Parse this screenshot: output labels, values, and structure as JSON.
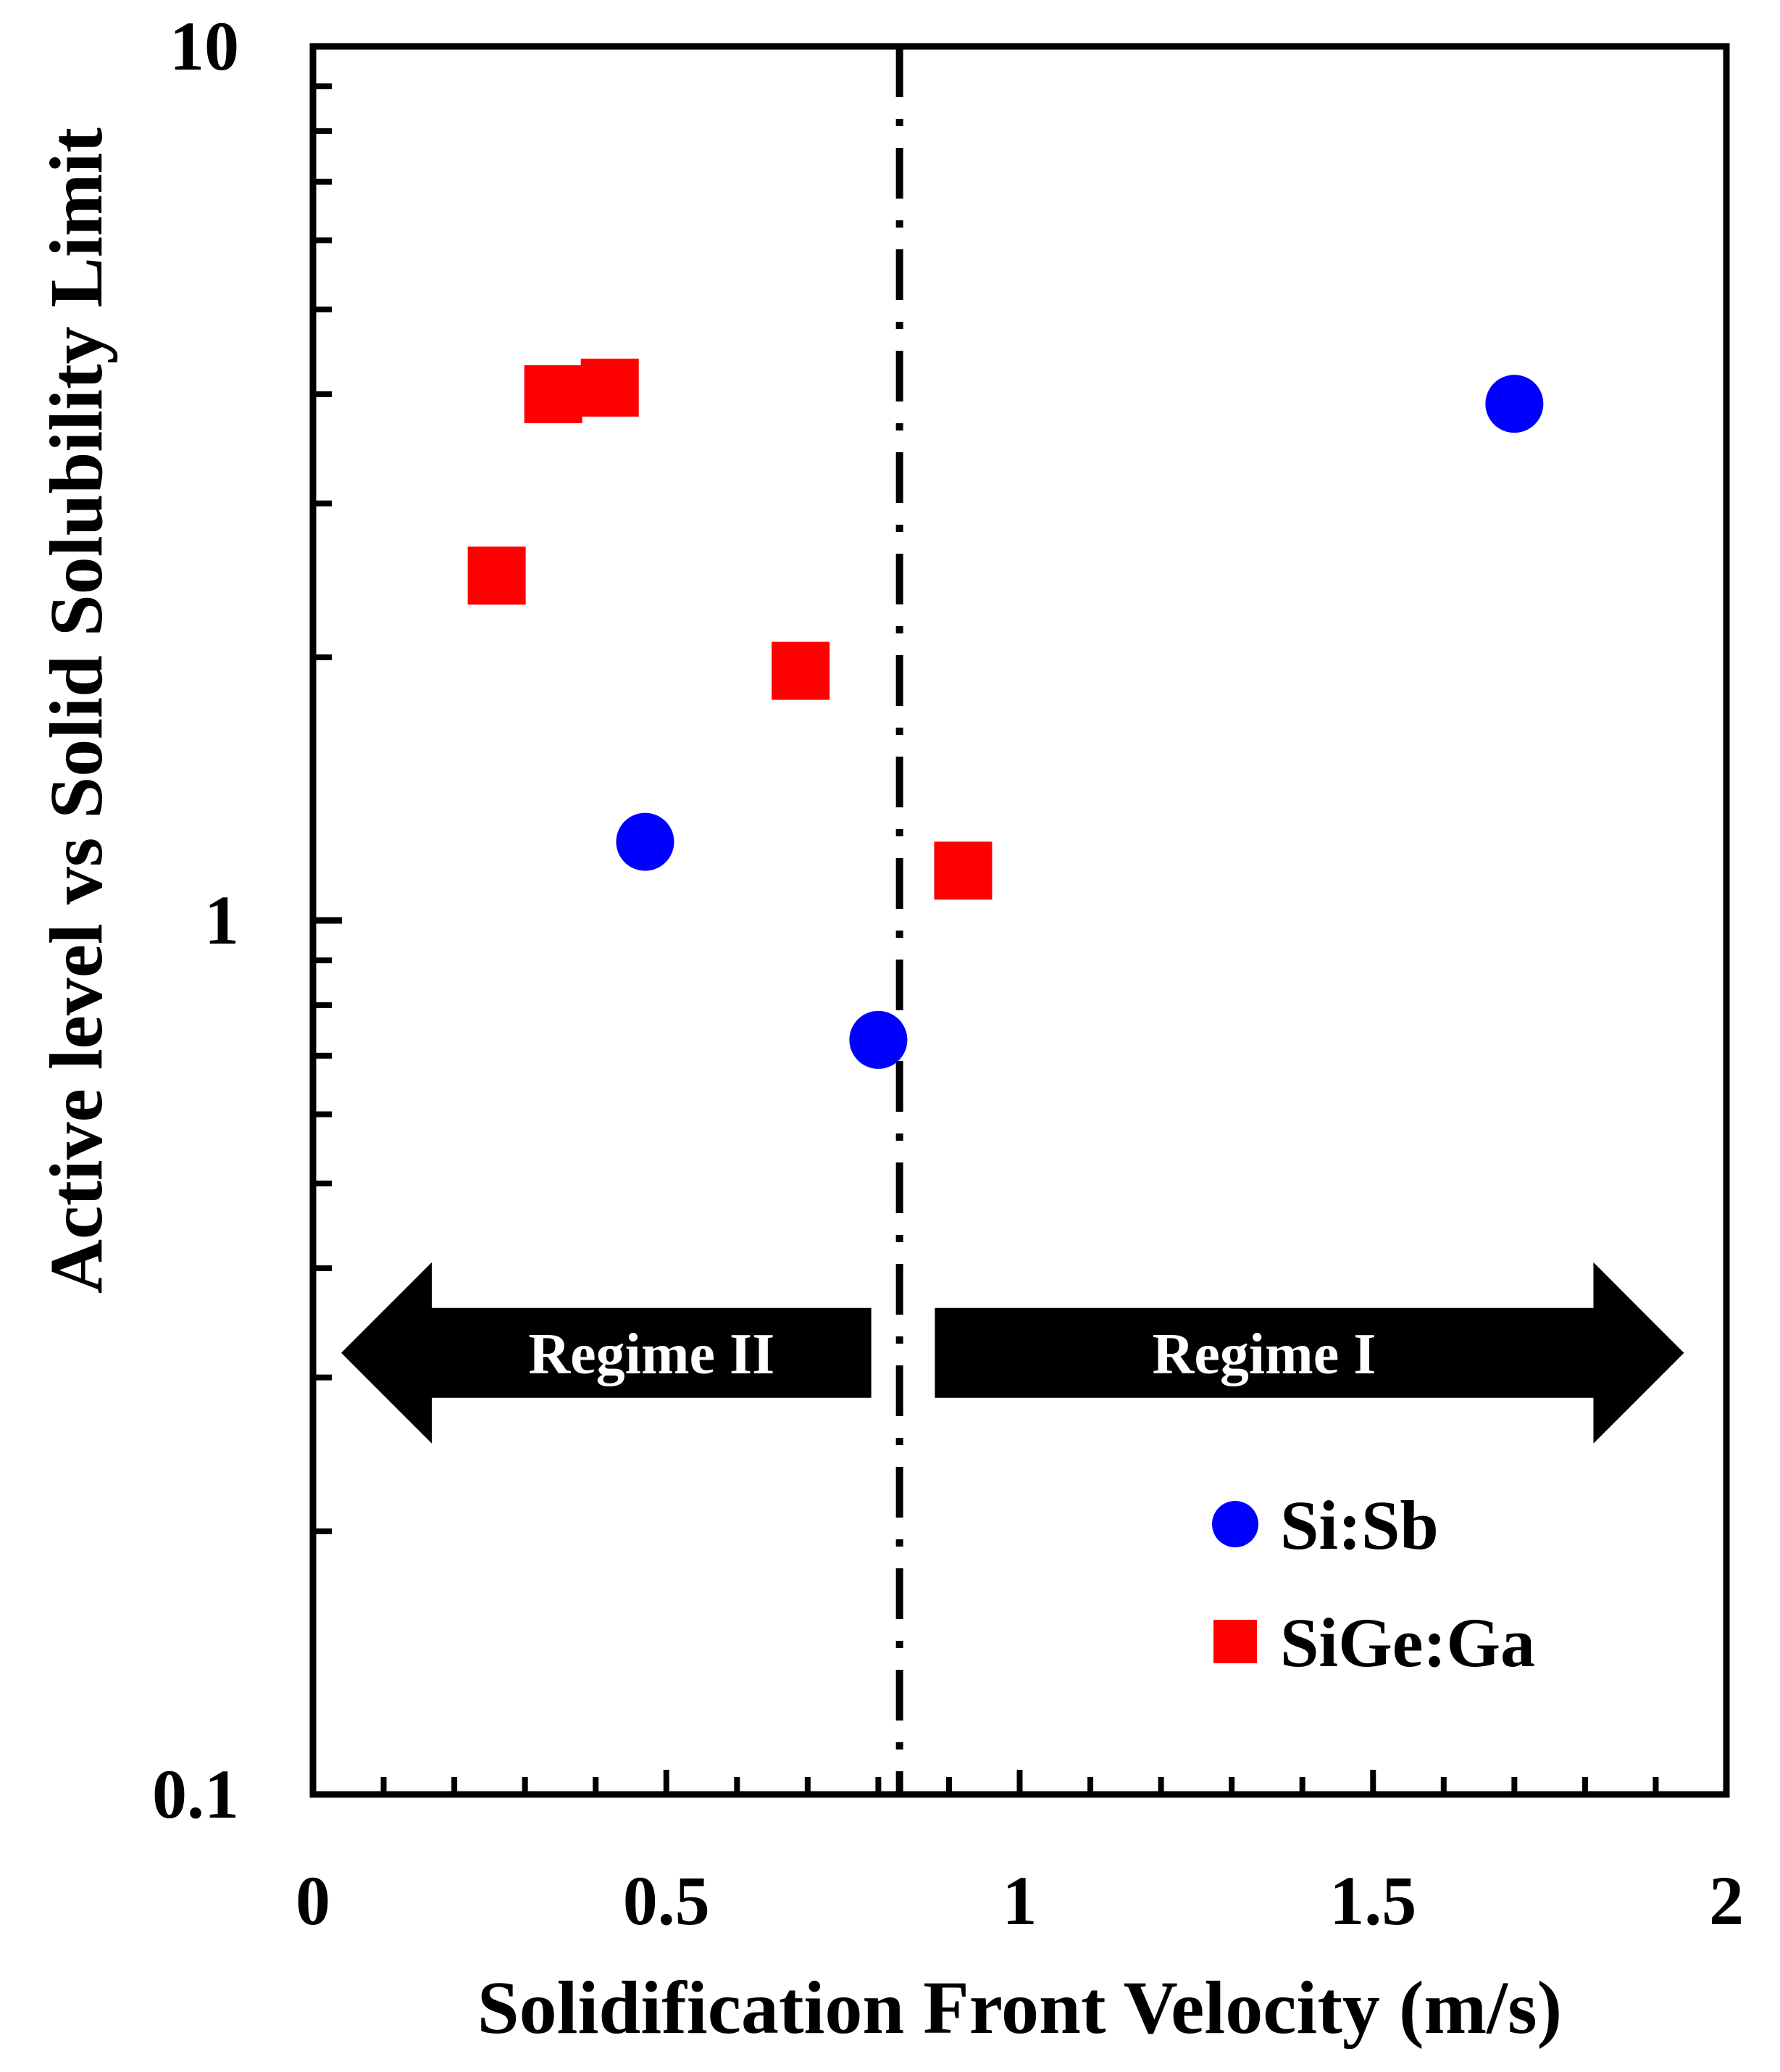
{
  "chart_data": {
    "type": "scatter",
    "title": "",
    "xlabel": "Solidification Front Velocity (m/s)",
    "ylabel": "Active level vs Solid Solubility Limit",
    "xlim": [
      0,
      2
    ],
    "ylim": [
      0.1,
      10
    ],
    "yscale": "log",
    "grid": false,
    "x_ticks": [
      {
        "value": 0,
        "label": "0"
      },
      {
        "value": 0.5,
        "label": "0.5"
      },
      {
        "value": 1,
        "label": "1"
      },
      {
        "value": 1.5,
        "label": "1.5"
      },
      {
        "value": 2,
        "label": "2"
      }
    ],
    "y_ticks": [
      {
        "value": 0.1,
        "label": "0.1"
      },
      {
        "value": 1,
        "label": "1"
      },
      {
        "value": 10,
        "label": "10"
      }
    ],
    "series": [
      {
        "name": "Si:Sb",
        "marker": "circle",
        "color": "#0000ff",
        "points": [
          {
            "x": 0.47,
            "y": 1.23
          },
          {
            "x": 0.8,
            "y": 0.73
          },
          {
            "x": 1.7,
            "y": 3.9
          }
        ]
      },
      {
        "name": "SiGe:Ga",
        "marker": "square",
        "color": "#ff0000",
        "points": [
          {
            "x": 0.26,
            "y": 2.48
          },
          {
            "x": 0.34,
            "y": 4.0
          },
          {
            "x": 0.42,
            "y": 4.07
          },
          {
            "x": 0.69,
            "y": 1.93
          },
          {
            "x": 0.92,
            "y": 1.14
          }
        ]
      }
    ],
    "vertical_line": {
      "x": 0.83,
      "style": "dash-dot"
    },
    "annotations": [
      {
        "label": "Regime II",
        "direction": "left",
        "x_from": 0.79,
        "x_to": 0.04,
        "y": 0.32
      },
      {
        "label": "Regime I",
        "direction": "right",
        "x_from": 0.88,
        "x_to": 1.94,
        "y": 0.32
      }
    ],
    "legend": {
      "position": "bottom-right"
    }
  }
}
